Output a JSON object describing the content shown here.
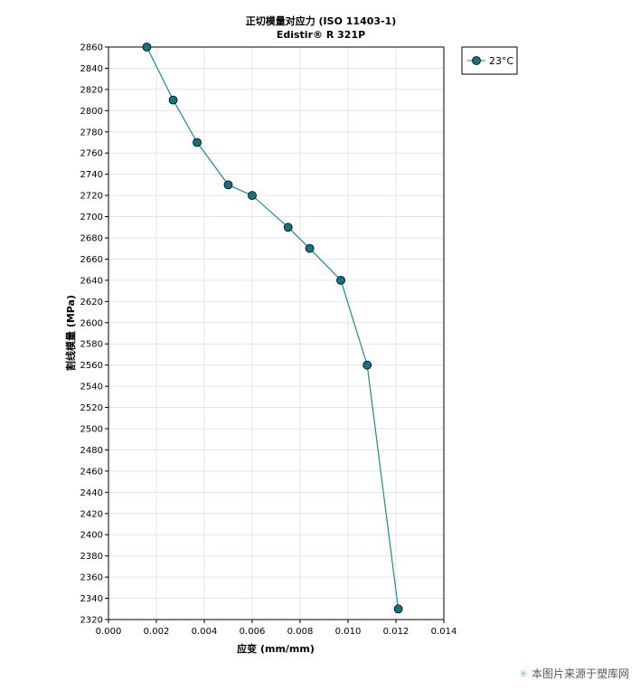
{
  "chart_data": {
    "type": "line",
    "title": "正切模量对应力 (ISO 11403-1)",
    "subtitle": "Edistir® R 321P",
    "xlabel": "应变 (mm/mm)",
    "ylabel": "割线模量 (MPa)",
    "xlim": [
      0,
      0.014
    ],
    "ylim": [
      2320,
      2860
    ],
    "xticks": [
      0,
      0.002,
      0.004,
      0.006,
      0.008,
      0.01,
      0.012,
      0.014
    ],
    "xtick_labels": [
      "0.000",
      "0.002",
      "0.004",
      "0.006",
      "0.008",
      "0.010",
      "0.012",
      "0.014"
    ],
    "yticks": [
      2320,
      2340,
      2360,
      2380,
      2400,
      2420,
      2440,
      2460,
      2480,
      2500,
      2520,
      2540,
      2560,
      2580,
      2600,
      2620,
      2640,
      2660,
      2680,
      2700,
      2720,
      2740,
      2760,
      2780,
      2800,
      2820,
      2840,
      2860
    ],
    "grid": true,
    "legend_position": "outside-top-right",
    "series": [
      {
        "name": "23°C",
        "color": "#1a8a96",
        "marker_color": "#137480",
        "x": [
          0.0016,
          0.0027,
          0.0037,
          0.005,
          0.006,
          0.0075,
          0.0084,
          0.0097,
          0.0108,
          0.0121
        ],
        "y": [
          2860,
          2810,
          2770,
          2730,
          2720,
          2690,
          2670,
          2640,
          2560,
          2330
        ]
      }
    ]
  },
  "watermark": {
    "icon": "star-icon",
    "text": "本图片来源于塑库网"
  }
}
